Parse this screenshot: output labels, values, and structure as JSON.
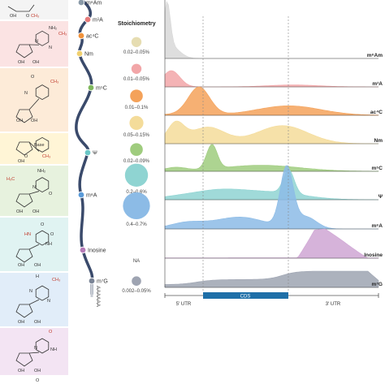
{
  "colors": {
    "backbone": "#3a4a6b",
    "cds_bar": "#1e6fa8"
  },
  "modifications": [
    {
      "id": "m6Am",
      "label": "m⁶Am",
      "bead_color": "#8a9aa8",
      "ridge_color": "#d8d8d8",
      "stoichiometry": "0.02–0.05%",
      "stoich_color": "#e6ddb2",
      "circle_size": 0.16
    },
    {
      "id": "m1A",
      "label": "m¹A",
      "bead_color": "#e57a7a",
      "ridge_color": "#f2a6a8",
      "stoichiometry": "0.01–0.05%",
      "stoich_color": "#f2a6a8",
      "circle_size": 0.16
    },
    {
      "id": "ac4C",
      "label": "ac⁴C",
      "bead_color": "#f0923b",
      "ridge_color": "#f4a25a",
      "stoichiometry": "0.01–0.1%",
      "stoich_color": "#f4a25a",
      "circle_size": 0.24
    },
    {
      "id": "Nm",
      "label": "Nm",
      "bead_color": "#f0d070",
      "ridge_color": "#f4dc9a",
      "stoichiometry": "0.05–0.15%",
      "stoich_color": "#f4dc9a",
      "circle_size": 0.28
    },
    {
      "id": "m5C",
      "label": "m⁵C",
      "bead_color": "#7fb85e",
      "ridge_color": "#9fcc7e",
      "stoichiometry": "0.02–0.09%",
      "stoich_color": "#9fcc7e",
      "circle_size": 0.24
    },
    {
      "id": "psi",
      "label": "Ψ",
      "bead_color": "#6ac6c6",
      "ridge_color": "#8fd4d2",
      "stoichiometry": "0.2–0.6%",
      "stoich_color": "#8fd4d2",
      "circle_size": 0.56
    },
    {
      "id": "m6A",
      "label": "m⁶A",
      "bead_color": "#5a9ad8",
      "ridge_color": "#8cbbe6",
      "stoichiometry": "0.4–0.7%",
      "stoich_color": "#8cbbe6",
      "circle_size": 0.68
    },
    {
      "id": "inosine",
      "label": "Inosine",
      "bead_color": "#b57ab8",
      "ridge_color": "#cfa6d4",
      "stoichiometry": "NA",
      "stoich_color": "",
      "circle_size": 0
    },
    {
      "id": "m7G",
      "label": "m⁷G",
      "bead_color": "#7a8496",
      "ridge_color": "#9ea4b2",
      "stoichiometry": "0.002–0.05%",
      "stoich_color": "#9ea4b2",
      "circle_size": 0.14
    }
  ],
  "stoichiometry_title": "Stoichiometry",
  "poly_a": "AAAAAA",
  "axis": {
    "utr5": "5′ UTR",
    "cds": "CDS",
    "utr3": "3′ UTR"
  },
  "structure_panels": [
    {
      "bg": "#f4f4f4",
      "labels": []
    },
    {
      "bg": "#fbe3e3",
      "labels": [
        "NH₂",
        "CH₃",
        "N",
        "N",
        "OH",
        "OH"
      ]
    },
    {
      "bg": "#fdebd8",
      "labels": [
        "O",
        "CH₃",
        "N",
        "OH",
        "OH"
      ]
    },
    {
      "bg": "#fff5d6",
      "labels": [
        "Base",
        "O",
        "CH₃",
        "OH"
      ]
    },
    {
      "bg": "#e7f2de",
      "labels": [
        "NH₂",
        "H₃C",
        "N",
        "O",
        "OH",
        "OH"
      ]
    },
    {
      "bg": "#e0f3f2",
      "labels": [
        "O",
        "HN",
        "NH",
        "O",
        "OH",
        "OH"
      ]
    },
    {
      "bg": "#e1edf9",
      "labels": [
        "H",
        "CH₃",
        "N",
        "N",
        "OH",
        "OH"
      ]
    },
    {
      "bg": "#f3e4f3",
      "labels": [
        "O",
        "N",
        "NH",
        "OH",
        "OH"
      ]
    }
  ]
}
